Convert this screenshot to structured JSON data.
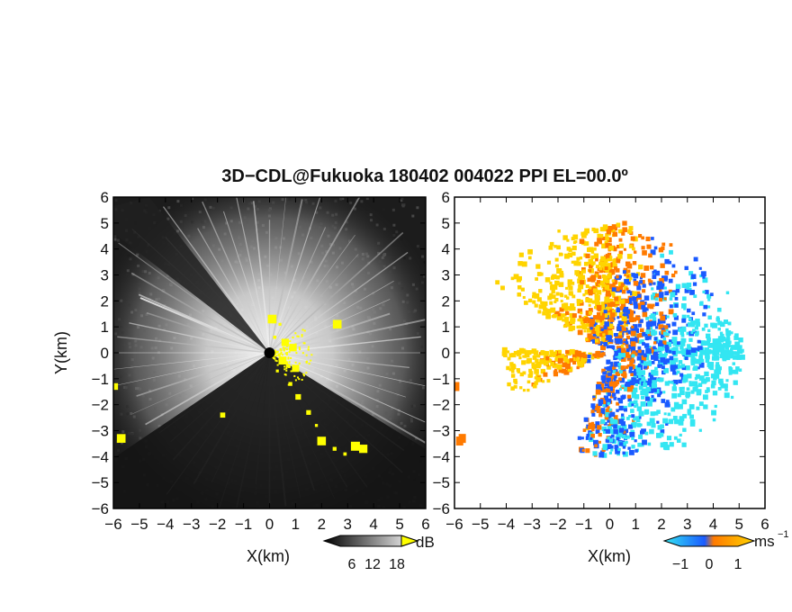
{
  "title": "3D−CDL@Fukuoka 180402 004022 PPI EL=00.0º",
  "chart_data": [
    {
      "type": "heatmap",
      "panel": "reflectivity",
      "xlabel": "X(km)",
      "ylabel": "Y(km)",
      "xlim": [
        -6,
        6
      ],
      "ylim": [
        -6,
        6
      ],
      "xticks": [
        "−6",
        "−5",
        "−4",
        "−3",
        "−2",
        "−1",
        "0",
        "1",
        "2",
        "3",
        "4",
        "5",
        "6"
      ],
      "yticks": [
        "6",
        "5",
        "4",
        "3",
        "2",
        "1",
        "0",
        "−1",
        "−2",
        "−3",
        "−4",
        "−5",
        "−6"
      ],
      "colorbar": {
        "unit": "dB",
        "ticks": [
          "6",
          "12",
          "18"
        ],
        "range": [
          0,
          24
        ],
        "colors": [
          "#000000",
          "#ffffff"
        ],
        "overflow_color": "#ffff00"
      },
      "grid": false
    },
    {
      "type": "heatmap",
      "panel": "doppler-velocity",
      "xlabel": "X(km)",
      "xlim": [
        -6,
        6
      ],
      "ylim": [
        -6,
        6
      ],
      "xticks": [
        "−6",
        "−5",
        "−4",
        "−3",
        "−2",
        "−1",
        "0",
        "1",
        "2",
        "3",
        "4",
        "5",
        "6"
      ],
      "yticks": [
        "6",
        "5",
        "4",
        "3",
        "2",
        "1",
        "0",
        "−1",
        "−2",
        "−3",
        "−4",
        "−5",
        "−6"
      ],
      "colorbar": {
        "unit": "ms",
        "unit_exp": "−1",
        "ticks": [
          "−1",
          "0",
          "1"
        ],
        "range": [
          -1.5,
          1.5
        ],
        "colors": [
          "#33e6f2",
          "#1a5aff",
          "#ff7a00",
          "#ffd400"
        ]
      },
      "grid": false
    }
  ]
}
